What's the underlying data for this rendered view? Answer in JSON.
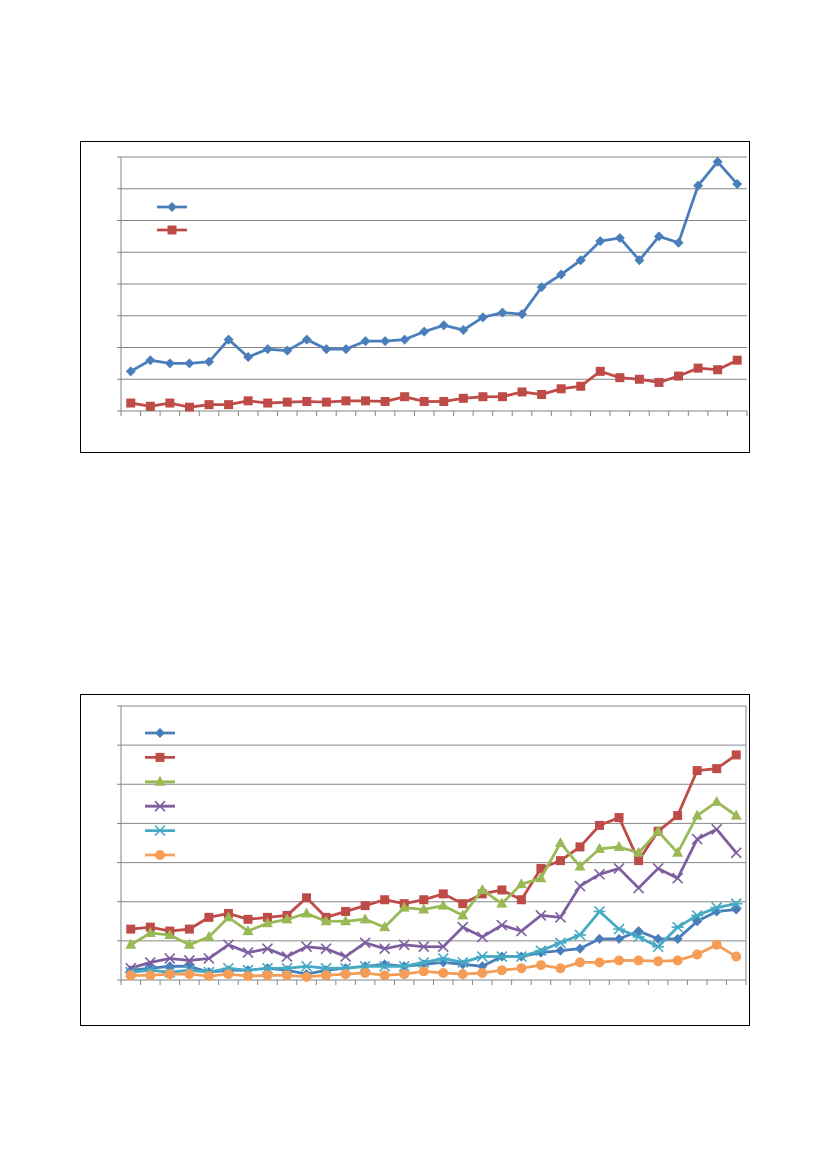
{
  "chart_data": [
    {
      "type": "line",
      "ylim": [
        0,
        8
      ],
      "grid": true,
      "legend_placement": "top-left",
      "x": [
        1,
        2,
        3,
        4,
        5,
        6,
        7,
        8,
        9,
        10,
        11,
        12,
        13,
        14,
        15,
        16,
        17,
        18,
        19,
        20,
        21,
        22,
        23,
        24,
        25,
        26,
        27,
        28,
        29,
        30,
        31,
        32
      ],
      "series": [
        {
          "color": "#4a7ebb",
          "marker": "diamond",
          "values": [
            1.25,
            1.6,
            1.5,
            1.5,
            1.55,
            2.25,
            1.7,
            1.95,
            1.9,
            2.25,
            1.95,
            1.95,
            2.2,
            2.2,
            2.25,
            2.5,
            2.7,
            2.55,
            2.95,
            3.1,
            3.05,
            3.9,
            4.3,
            4.75,
            5.35,
            5.45,
            4.75,
            5.5,
            5.3,
            7.1,
            7.85,
            7.15
          ]
        },
        {
          "color": "#be4b48",
          "marker": "square",
          "values": [
            0.25,
            0.15,
            0.25,
            0.12,
            0.2,
            0.2,
            0.32,
            0.25,
            0.28,
            0.3,
            0.28,
            0.32,
            0.32,
            0.3,
            0.45,
            0.3,
            0.3,
            0.4,
            0.45,
            0.45,
            0.6,
            0.52,
            0.7,
            0.78,
            1.25,
            1.05,
            1.0,
            0.9,
            1.1,
            1.35,
            1.3,
            1.6
          ]
        }
      ]
    },
    {
      "type": "line",
      "ylim": [
        0,
        7
      ],
      "grid": true,
      "legend_placement": "top-left",
      "x": [
        1,
        2,
        3,
        4,
        5,
        6,
        7,
        8,
        9,
        10,
        11,
        12,
        13,
        14,
        15,
        16,
        17,
        18,
        19,
        20,
        21,
        22,
        23,
        24,
        25,
        26,
        27,
        28,
        29,
        30,
        31,
        32
      ],
      "series": [
        {
          "color": "#4a7ebb",
          "marker": "diamond",
          "values": [
            0.25,
            0.3,
            0.35,
            0.35,
            0.2,
            0.25,
            0.25,
            0.3,
            0.25,
            0.15,
            0.25,
            0.3,
            0.35,
            0.4,
            0.35,
            0.4,
            0.45,
            0.4,
            0.35,
            0.6,
            0.6,
            0.7,
            0.75,
            0.8,
            1.05,
            1.05,
            1.25,
            1.05,
            1.05,
            1.5,
            1.75,
            1.8
          ]
        },
        {
          "color": "#be4b48",
          "marker": "square",
          "values": [
            1.3,
            1.35,
            1.25,
            1.3,
            1.6,
            1.7,
            1.55,
            1.6,
            1.65,
            2.1,
            1.6,
            1.75,
            1.9,
            2.05,
            1.95,
            2.05,
            2.2,
            1.95,
            2.2,
            2.3,
            2.05,
            2.85,
            3.05,
            3.4,
            3.95,
            4.15,
            3.05,
            3.8,
            4.2,
            5.35,
            5.4,
            5.75
          ]
        },
        {
          "color": "#98b954",
          "marker": "triangle",
          "values": [
            0.9,
            1.2,
            1.15,
            0.9,
            1.1,
            1.6,
            1.25,
            1.45,
            1.55,
            1.7,
            1.5,
            1.5,
            1.55,
            1.35,
            1.85,
            1.8,
            1.9,
            1.65,
            2.3,
            1.95,
            2.45,
            2.6,
            3.5,
            2.9,
            3.35,
            3.4,
            3.25,
            3.8,
            3.25,
            4.2,
            4.55,
            4.2
          ]
        },
        {
          "color": "#7d5fa0",
          "marker": "x",
          "values": [
            0.3,
            0.45,
            0.55,
            0.5,
            0.55,
            0.9,
            0.7,
            0.8,
            0.6,
            0.85,
            0.8,
            0.6,
            0.95,
            0.8,
            0.9,
            0.85,
            0.85,
            1.35,
            1.1,
            1.4,
            1.25,
            1.65,
            1.6,
            2.4,
            2.7,
            2.85,
            2.35,
            2.85,
            2.6,
            3.6,
            3.85,
            3.25
          ]
        },
        {
          "color": "#46aac5",
          "marker": "star",
          "values": [
            0.2,
            0.25,
            0.2,
            0.25,
            0.2,
            0.3,
            0.25,
            0.3,
            0.3,
            0.35,
            0.3,
            0.3,
            0.35,
            0.35,
            0.35,
            0.45,
            0.55,
            0.45,
            0.6,
            0.6,
            0.6,
            0.75,
            0.95,
            1.15,
            1.75,
            1.3,
            1.1,
            0.85,
            1.35,
            1.65,
            1.85,
            1.95
          ]
        },
        {
          "color": "#f59d56",
          "marker": "circle",
          "values": [
            0.12,
            0.12,
            0.15,
            0.15,
            0.1,
            0.15,
            0.1,
            0.12,
            0.12,
            0.08,
            0.12,
            0.15,
            0.18,
            0.12,
            0.15,
            0.22,
            0.18,
            0.15,
            0.18,
            0.25,
            0.3,
            0.38,
            0.3,
            0.45,
            0.45,
            0.5,
            0.5,
            0.48,
            0.5,
            0.65,
            0.9,
            0.6
          ]
        }
      ]
    }
  ]
}
